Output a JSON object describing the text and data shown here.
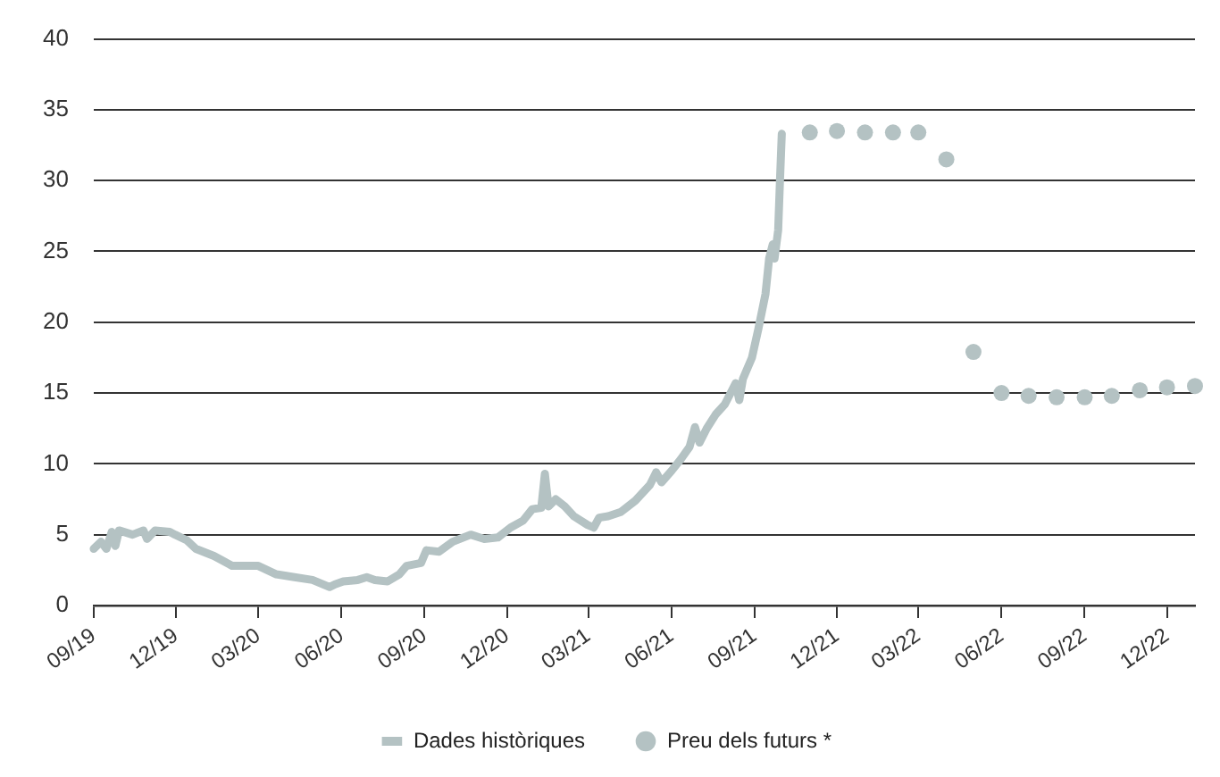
{
  "chart_data": {
    "type": "line",
    "xlim": [
      "2019-09-01",
      "2023-01-01"
    ],
    "xticks": [
      {
        "value": "2019-09-01",
        "label": "09/19"
      },
      {
        "value": "2019-12-01",
        "label": "12/19"
      },
      {
        "value": "2020-03-01",
        "label": "03/20"
      },
      {
        "value": "2020-06-01",
        "label": "06/20"
      },
      {
        "value": "2020-09-01",
        "label": "09/20"
      },
      {
        "value": "2020-12-01",
        "label": "12/20"
      },
      {
        "value": "2021-03-01",
        "label": "03/21"
      },
      {
        "value": "2021-06-01",
        "label": "06/21"
      },
      {
        "value": "2021-09-01",
        "label": "09/21"
      },
      {
        "value": "2021-12-01",
        "label": "12/21"
      },
      {
        "value": "2022-03-01",
        "label": "03/22"
      },
      {
        "value": "2022-06-01",
        "label": "06/22"
      },
      {
        "value": "2022-09-01",
        "label": "09/22"
      },
      {
        "value": "2022-12-01",
        "label": "12/22"
      }
    ],
    "ylim": [
      0,
      40
    ],
    "yticks": [
      0,
      5,
      10,
      15,
      20,
      25,
      30,
      35,
      40
    ],
    "grid": "y",
    "legend": "bottom",
    "series": [
      {
        "name": "Dades històriques",
        "color": "#b4c2c3",
        "marker": "none",
        "line_style": "solid",
        "x": [
          "2019-09-01",
          "2019-09-09",
          "2019-09-15",
          "2019-09-21",
          "2019-09-25",
          "2019-09-29",
          "2019-10-14",
          "2019-10-26",
          "2019-10-30",
          "2019-11-08",
          "2019-11-24",
          "2019-11-30",
          "2019-12-13",
          "2019-12-23",
          "2020-01-12",
          "2020-02-01",
          "2020-03-01",
          "2020-03-21",
          "2020-04-10",
          "2020-04-30",
          "2020-05-19",
          "2020-05-25",
          "2020-06-03",
          "2020-06-19",
          "2020-06-29",
          "2020-07-08",
          "2020-07-22",
          "2020-08-04",
          "2020-08-12",
          "2020-08-28",
          "2020-09-03",
          "2020-09-17",
          "2020-10-02",
          "2020-10-22",
          "2020-11-06",
          "2020-11-21",
          "2020-12-05",
          "2020-12-19",
          "2020-12-29",
          "2021-01-08",
          "2021-01-12",
          "2021-01-16",
          "2021-01-24",
          "2021-02-03",
          "2021-02-13",
          "2021-02-28",
          "2021-03-07",
          "2021-03-13",
          "2021-03-23",
          "2021-04-06",
          "2021-04-22",
          "2021-05-08",
          "2021-05-15",
          "2021-05-21",
          "2021-06-01",
          "2021-06-11",
          "2021-06-21",
          "2021-06-27",
          "2021-07-02",
          "2021-07-10",
          "2021-07-20",
          "2021-07-30",
          "2021-08-11",
          "2021-08-15",
          "2021-08-19",
          "2021-08-29",
          "2021-09-05",
          "2021-09-13",
          "2021-09-17",
          "2021-09-21",
          "2021-09-23",
          "2021-09-27",
          "2021-09-29",
          "2021-10-01"
        ],
        "values": [
          4.0,
          4.5,
          4.0,
          5.2,
          4.2,
          5.3,
          5.0,
          5.3,
          4.7,
          5.3,
          5.2,
          5.0,
          4.6,
          4.0,
          3.5,
          2.8,
          2.8,
          2.2,
          2.0,
          1.8,
          1.3,
          1.5,
          1.7,
          1.8,
          2.0,
          1.8,
          1.7,
          2.2,
          2.8,
          3.0,
          3.9,
          3.8,
          4.5,
          5.0,
          4.7,
          4.8,
          5.5,
          6.0,
          6.8,
          6.9,
          9.3,
          7.0,
          7.5,
          7.0,
          6.3,
          5.7,
          5.5,
          6.2,
          6.3,
          6.6,
          7.4,
          8.5,
          9.4,
          8.7,
          9.5,
          10.3,
          11.2,
          12.6,
          11.5,
          12.5,
          13.5,
          14.2,
          15.7,
          14.5,
          16.0,
          17.5,
          19.5,
          22.0,
          24.5,
          25.5,
          24.5,
          26.5,
          30.0,
          33.3
        ]
      },
      {
        "name": "Preu dels futurs *",
        "type": "scatter",
        "color": "#b4c2c3",
        "marker": "circle",
        "x": [
          "2021-11",
          "2021-12",
          "2022-01",
          "2022-02",
          "2022-03",
          "2022-04",
          "2022-05",
          "2022-06",
          "2022-07",
          "2022-08",
          "2022-09",
          "2022-10",
          "2022-11",
          "2022-12",
          "2023-01"
        ],
        "values": [
          33.4,
          33.5,
          33.4,
          33.4,
          33.4,
          31.5,
          17.9,
          15.0,
          14.8,
          14.7,
          14.7,
          14.8,
          15.2,
          15.4,
          15.5
        ]
      }
    ]
  }
}
